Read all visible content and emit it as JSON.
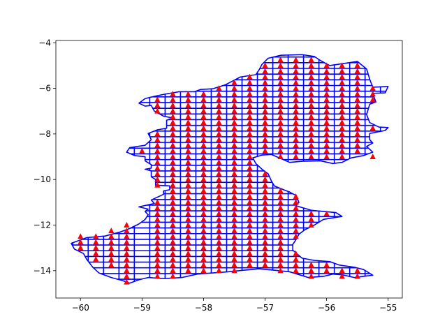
{
  "chart_data": {
    "type": "scatter",
    "title": "",
    "xlabel": "",
    "ylabel": "",
    "xlim": [
      -60.4,
      -54.77
    ],
    "ylim": [
      -15.2,
      -3.9
    ],
    "xticks": [
      -60,
      -59,
      -58,
      -57,
      -56,
      -55
    ],
    "yticks": [
      -14,
      -12,
      -10,
      -8,
      -6,
      -4
    ],
    "xtick_labels": [
      "−60",
      "−59",
      "−58",
      "−57",
      "−56",
      "−55"
    ],
    "ytick_labels": [
      "−14",
      "−12",
      "−10",
      "−8",
      "−6",
      "−4"
    ],
    "grid": false,
    "legend": "none",
    "grid_step": [
      0.25,
      0.25
    ],
    "series": [
      {
        "kind": "outline",
        "color": "#0000ff",
        "outline": [
          [
            -59.9,
            -12.55
          ],
          [
            -59.6,
            -12.48
          ],
          [
            -59.35,
            -12.3
          ],
          [
            -59.2,
            -12.15
          ],
          [
            -59.05,
            -11.95
          ],
          [
            -58.95,
            -11.75
          ],
          [
            -58.9,
            -11.55
          ],
          [
            -58.95,
            -11.4
          ],
          [
            -58.9,
            -11.3
          ],
          [
            -59.05,
            -11.2
          ],
          [
            -58.8,
            -11.05
          ],
          [
            -58.85,
            -10.9
          ],
          [
            -58.65,
            -10.65
          ],
          [
            -58.65,
            -10.5
          ],
          [
            -58.55,
            -10.45
          ],
          [
            -58.55,
            -10.28
          ],
          [
            -58.78,
            -10.25
          ],
          [
            -58.78,
            -10.0
          ],
          [
            -58.85,
            -9.88
          ],
          [
            -58.85,
            -9.62
          ],
          [
            -58.95,
            -9.55
          ],
          [
            -58.85,
            -9.5
          ],
          [
            -58.85,
            -9.35
          ],
          [
            -58.95,
            -9.18
          ],
          [
            -58.95,
            -9.0
          ],
          [
            -59.12,
            -8.95
          ],
          [
            -59.25,
            -8.8
          ],
          [
            -59.2,
            -8.6
          ],
          [
            -58.95,
            -8.5
          ],
          [
            -58.85,
            -8.25
          ],
          [
            -58.9,
            -7.98
          ],
          [
            -58.75,
            -7.82
          ],
          [
            -58.6,
            -7.75
          ],
          [
            -58.6,
            -7.4
          ],
          [
            -58.5,
            -7.3
          ],
          [
            -58.65,
            -7.22
          ],
          [
            -58.8,
            -7.0
          ],
          [
            -58.85,
            -6.75
          ],
          [
            -58.95,
            -6.78
          ],
          [
            -59.05,
            -6.65
          ],
          [
            -58.95,
            -6.45
          ],
          [
            -58.8,
            -6.35
          ],
          [
            -58.62,
            -6.25
          ],
          [
            -58.4,
            -6.15
          ],
          [
            -58.15,
            -6.15
          ],
          [
            -58.05,
            -6.05
          ],
          [
            -57.85,
            -6.02
          ],
          [
            -57.65,
            -5.85
          ],
          [
            -57.4,
            -5.5
          ],
          [
            -57.15,
            -5.4
          ],
          [
            -57.1,
            -5.2
          ],
          [
            -57.05,
            -4.95
          ],
          [
            -56.95,
            -4.68
          ],
          [
            -56.75,
            -4.55
          ],
          [
            -56.4,
            -4.52
          ],
          [
            -56.2,
            -4.6
          ],
          [
            -56.1,
            -4.78
          ],
          [
            -55.95,
            -5.0
          ],
          [
            -55.7,
            -4.9
          ],
          [
            -55.5,
            -4.82
          ],
          [
            -55.35,
            -5.15
          ],
          [
            -55.3,
            -5.6
          ],
          [
            -55.25,
            -5.95
          ],
          [
            -55.0,
            -5.92
          ],
          [
            -55.05,
            -6.2
          ],
          [
            -55.25,
            -6.22
          ],
          [
            -55.2,
            -6.6
          ],
          [
            -55.3,
            -6.7
          ],
          [
            -55.35,
            -7.15
          ],
          [
            -55.3,
            -7.5
          ],
          [
            -55.15,
            -7.7
          ],
          [
            -55.0,
            -7.72
          ],
          [
            -55.05,
            -7.85
          ],
          [
            -55.3,
            -7.98
          ],
          [
            -55.3,
            -8.25
          ],
          [
            -55.25,
            -8.4
          ],
          [
            -55.35,
            -8.55
          ],
          [
            -55.25,
            -8.8
          ],
          [
            -55.4,
            -8.95
          ],
          [
            -55.6,
            -9.05
          ],
          [
            -55.75,
            -9.25
          ],
          [
            -55.9,
            -9.3
          ],
          [
            -56.1,
            -9.18
          ],
          [
            -56.4,
            -9.2
          ],
          [
            -56.6,
            -9.25
          ],
          [
            -56.9,
            -8.9
          ],
          [
            -57.05,
            -8.93
          ],
          [
            -57.2,
            -9.05
          ],
          [
            -57.15,
            -9.3
          ],
          [
            -57.05,
            -9.55
          ],
          [
            -56.95,
            -9.75
          ],
          [
            -56.9,
            -10.05
          ],
          [
            -56.85,
            -10.28
          ],
          [
            -56.7,
            -10.45
          ],
          [
            -56.6,
            -10.55
          ],
          [
            -56.5,
            -10.7
          ],
          [
            -56.45,
            -11.0
          ],
          [
            -56.5,
            -11.15
          ],
          [
            -56.25,
            -11.35
          ],
          [
            -55.85,
            -11.45
          ],
          [
            -55.75,
            -11.62
          ],
          [
            -56.05,
            -11.75
          ],
          [
            -56.2,
            -12.0
          ],
          [
            -56.35,
            -12.2
          ],
          [
            -56.45,
            -12.4
          ],
          [
            -56.5,
            -12.65
          ],
          [
            -56.55,
            -12.85
          ],
          [
            -56.55,
            -13.1
          ],
          [
            -56.4,
            -13.45
          ],
          [
            -56.2,
            -13.55
          ],
          [
            -55.95,
            -13.6
          ],
          [
            -55.8,
            -13.75
          ],
          [
            -55.55,
            -13.85
          ],
          [
            -55.4,
            -13.95
          ],
          [
            -55.25,
            -14.2
          ],
          [
            -55.55,
            -14.3
          ],
          [
            -55.75,
            -14.18
          ],
          [
            -55.9,
            -14.15
          ],
          [
            -56.05,
            -14.25
          ],
          [
            -56.3,
            -14.3
          ],
          [
            -56.6,
            -14.05
          ],
          [
            -56.85,
            -13.98
          ],
          [
            -57.1,
            -13.92
          ],
          [
            -57.35,
            -13.98
          ],
          [
            -57.6,
            -14.05
          ],
          [
            -57.85,
            -14.1
          ],
          [
            -58.1,
            -14.15
          ],
          [
            -58.35,
            -14.3
          ],
          [
            -58.65,
            -14.35
          ],
          [
            -58.9,
            -14.3
          ],
          [
            -59.05,
            -14.4
          ],
          [
            -59.2,
            -14.55
          ],
          [
            -59.3,
            -14.45
          ],
          [
            -59.5,
            -14.3
          ],
          [
            -59.7,
            -14.1
          ],
          [
            -59.8,
            -13.85
          ],
          [
            -59.9,
            -13.5
          ],
          [
            -59.95,
            -13.25
          ],
          [
            -60.1,
            -13.05
          ],
          [
            -60.15,
            -12.8
          ]
        ]
      },
      {
        "kind": "markers",
        "marker": "triangle",
        "color": "#ff0000",
        "points": [
          [
            -59.0,
            -8.75
          ],
          [
            -58.75,
            -6.75
          ],
          [
            -55.5,
            -5.0
          ],
          [
            -55.25,
            -9.0
          ],
          [
            -55.75,
            -14.25
          ],
          [
            -60.0,
            -12.5
          ],
          [
            -60.0,
            -12.75
          ],
          [
            -60.0,
            -13.0
          ],
          [
            -59.75,
            -12.5
          ],
          [
            -59.75,
            -12.75
          ],
          [
            -59.75,
            -13.0
          ],
          [
            -59.75,
            -13.25
          ],
          [
            -59.75,
            -13.5
          ],
          [
            -59.5,
            -12.25
          ],
          [
            -59.5,
            -12.5
          ],
          [
            -59.5,
            -12.75
          ],
          [
            -59.5,
            -13.0
          ],
          [
            -59.5,
            -13.25
          ],
          [
            -59.5,
            -13.5
          ],
          [
            -59.5,
            -13.75
          ],
          [
            -59.25,
            -12.0
          ],
          [
            -59.25,
            -12.25
          ],
          [
            -59.25,
            -12.5
          ],
          [
            -59.25,
            -12.75
          ],
          [
            -59.25,
            -13.0
          ],
          [
            -59.25,
            -13.25
          ],
          [
            -59.25,
            -13.5
          ],
          [
            -59.25,
            -13.75
          ],
          [
            -59.25,
            -14.0
          ],
          [
            -59.25,
            -14.25
          ],
          [
            -59.25,
            -14.5
          ]
        ]
      }
    ]
  }
}
